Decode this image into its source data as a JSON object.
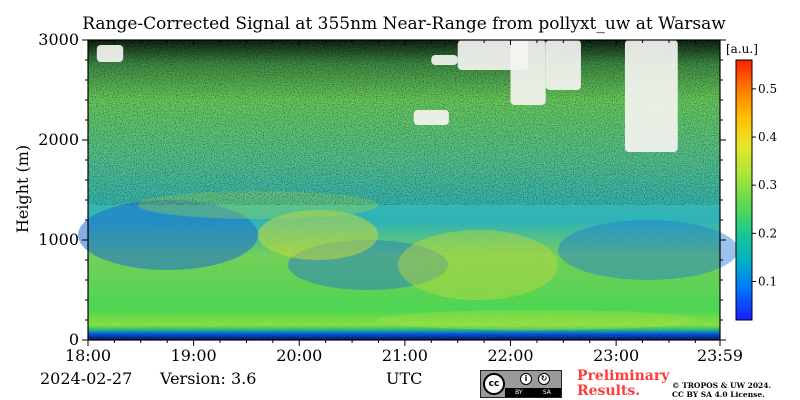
{
  "title": "Range-Corrected Signal at 355nm Near-Range from pollyxt_uw at Warsaw",
  "footer": {
    "date": "2024-02-27",
    "version": "Version: 3.6",
    "xlabel": "UTC",
    "preliminary_line1": "Preliminary",
    "preliminary_line2": "Results.",
    "copyright_line1": "© TROPOS & UW 2024.",
    "copyright_line2": "CC BY SA 4.0 License.",
    "cc_badge": {
      "logo": "cc",
      "by": "BY",
      "sa": "SA"
    }
  },
  "colors": {
    "colormap": [
      "#1a1aff",
      "#0070ff",
      "#00b0c8",
      "#19c890",
      "#5fd850",
      "#a8e63a",
      "#e6e628",
      "#ffc000",
      "#ff7a00",
      "#ff2000"
    ],
    "preliminary": "#ff3b3b"
  },
  "chart_data": {
    "type": "heatmap",
    "title": "Range-Corrected Signal at 355nm Near-Range from pollyxt_uw at Warsaw",
    "xlabel": "",
    "ylabel": "Height (m)",
    "x_tick_labels": [
      "18:00",
      "19:00",
      "20:00",
      "21:00",
      "22:00",
      "23:00",
      "23:59"
    ],
    "xlim": [
      "18:00",
      "23:59"
    ],
    "y_ticks": [
      0,
      1000,
      2000,
      3000
    ],
    "ylim": [
      0,
      3000
    ],
    "colorbar": {
      "label": "[a.u.]",
      "ticks": [
        0.1,
        0.2,
        0.3,
        0.4,
        0.5
      ],
      "range": [
        0.02,
        0.56
      ]
    },
    "grid": false,
    "approx_signal_profile": {
      "heights_m": [
        50,
        200,
        500,
        800,
        1000,
        1200,
        1500,
        2000,
        2500,
        2900
      ],
      "values": [
        0.05,
        0.28,
        0.3,
        0.28,
        0.22,
        0.24,
        0.23,
        0.22,
        0.2,
        0.18
      ]
    },
    "cloud_features": [
      {
        "start": "18:05",
        "end": "18:20",
        "height_low": 2780,
        "height_high": 2950
      },
      {
        "start": "21:05",
        "end": "21:25",
        "height_low": 2150,
        "height_high": 2300
      },
      {
        "start": "21:15",
        "end": "21:30",
        "height_low": 2750,
        "height_high": 2850
      },
      {
        "start": "21:30",
        "end": "22:10",
        "height_low": 2700,
        "height_high": 3000
      },
      {
        "start": "22:00",
        "end": "22:20",
        "height_low": 2350,
        "height_high": 3000
      },
      {
        "start": "22:20",
        "end": "22:40",
        "height_low": 2500,
        "height_high": 3000
      },
      {
        "start": "23:05",
        "end": "23:35",
        "height_low": 1880,
        "height_high": 3000
      }
    ]
  }
}
